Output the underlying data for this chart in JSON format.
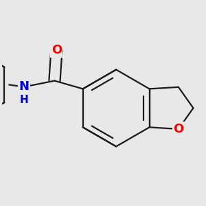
{
  "background_color": "#e8e8e8",
  "bond_color": "#1a1a1a",
  "bond_width": 1.6,
  "atom_colors": {
    "O": "#ff0000",
    "N": "#0000cc",
    "C": "#1a1a1a"
  },
  "font_size": 12,
  "figsize": [
    3.0,
    3.0
  ],
  "dpi": 100
}
